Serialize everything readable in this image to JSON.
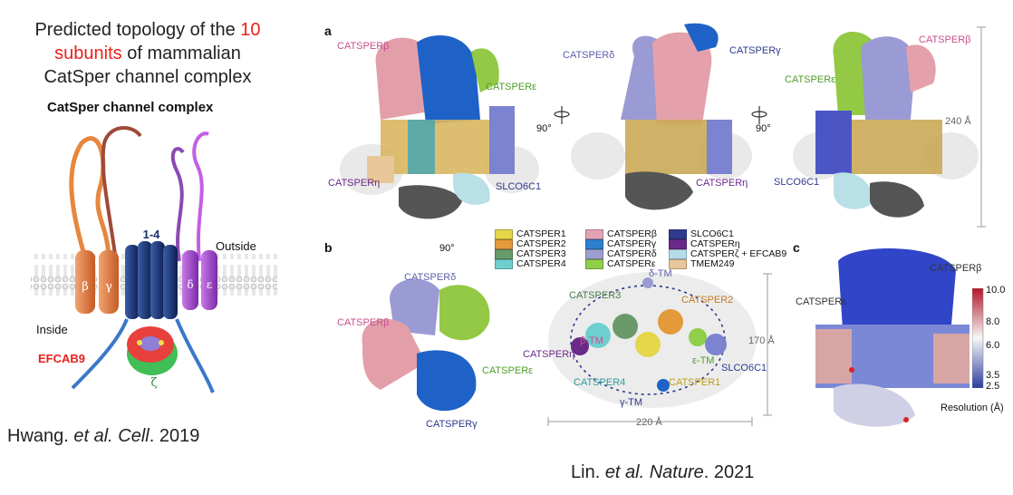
{
  "left": {
    "title_line1": "Predicted topology of the ",
    "title_count": "10",
    "title_line2a": "subunits",
    "title_line2b": " of mammalian",
    "title_line3": "CatSper channel complex",
    "diagram_heading": "CatSper channel complex",
    "beta": "β",
    "gamma": "γ",
    "delta": "δ",
    "epsilon": "ε",
    "zeta": "ζ",
    "pore": "1-4",
    "outside": "Outside",
    "inside": "Inside",
    "efcab9": "EFCAB9",
    "citation_authors": "Hwang. ",
    "citation_journal": "et al. Cell",
    "citation_year": ". 2019"
  },
  "right": {
    "panel_a": "a",
    "panel_b": "b",
    "panel_c": "c",
    "rot1": "90°",
    "rot2": "90°",
    "rot3": "90°",
    "scale_240": "240 Å",
    "scale_170": "170 Å",
    "scale_220": "220 Å",
    "a_labels": {
      "beta1": "CATSPERβ",
      "eps1": "CATSPERε",
      "eta1": "CATSPERη",
      "slco1": "SLCO6C1",
      "delta2": "CATSPERδ",
      "gamma2": "CATSPERγ",
      "eta2": "CATSPERη",
      "eps3": "CATSPERε",
      "beta3": "CATSPERβ",
      "slco3": "SLCO6C1"
    },
    "legend": [
      {
        "label": "CATSPER1",
        "color": "#e5d64a"
      },
      {
        "label": "CATSPER2",
        "color": "#e39a3b"
      },
      {
        "label": "CATSPER3",
        "color": "#6a9a6a"
      },
      {
        "label": "CATSPER4",
        "color": "#6ecfcf"
      },
      {
        "label": "CATSPERβ",
        "color": "#e3a3b6"
      },
      {
        "label": "CATSPERγ",
        "color": "#2f7fd0"
      },
      {
        "label": "CATSPERδ",
        "color": "#9e9fd0"
      },
      {
        "label": "CATSPERε",
        "color": "#8fcf4a"
      },
      {
        "label": "SLCO6C1",
        "color": "#2e3a8c"
      },
      {
        "label": "CATSPERη",
        "color": "#6a2a8a"
      },
      {
        "label": "CATSPERζ + EFCAB9",
        "color": "#b6dbea"
      },
      {
        "label": "TMEM249",
        "color": "#e8c79a"
      }
    ],
    "b_labels": {
      "delta": "CATSPERδ",
      "beta": "CATSPERβ",
      "eps": "CATSPERε",
      "gamma": "CATSPERγ",
      "c3": "CATSPER3",
      "c2": "CATSPER2",
      "eta": "CATSPERη",
      "c4": "CATSPER4",
      "c1": "CATSPER1",
      "slco": "SLCO6C1",
      "delta_tm": "δ-TM",
      "beta_tm": "β-TM",
      "eps_tm": "ε-TM",
      "gamma_tm": "γ-TM"
    },
    "c_labels": {
      "beta": "CATSPERβ",
      "eps": "CATSPERε",
      "cb_max": "10.0",
      "cb_8": "8.0",
      "cb_6": "6.0",
      "cb_35": "3.5",
      "cb_min": "2.5",
      "cb_title": "Resolution (Å)"
    },
    "citation_authors": "Lin. ",
    "citation_journal": "et al. Nature",
    "citation_year": ". 2021"
  }
}
